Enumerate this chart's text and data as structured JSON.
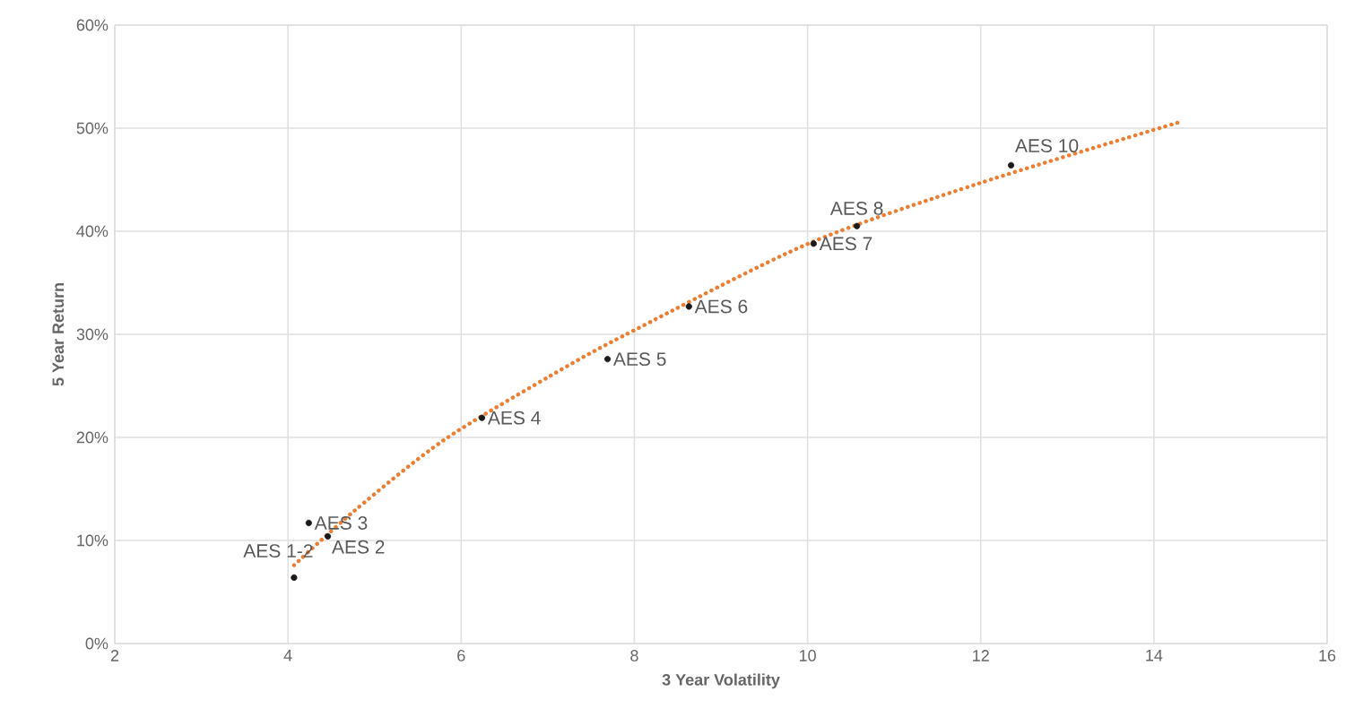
{
  "chart_data": {
    "type": "scatter",
    "xlabel": "3 Year Volatility",
    "ylabel": "5 Year Return",
    "xlim": [
      2,
      16
    ],
    "xticks": [
      2,
      4,
      6,
      8,
      10,
      12,
      14,
      16
    ],
    "ylim": [
      0,
      60
    ],
    "yticks": [
      {
        "value": 0,
        "label": "0%"
      },
      {
        "value": 10,
        "label": "10%"
      },
      {
        "value": 20,
        "label": "20%"
      },
      {
        "value": 30,
        "label": "30%"
      },
      {
        "value": 40,
        "label": "40%"
      },
      {
        "value": 50,
        "label": "50%"
      },
      {
        "value": 60,
        "label": "60%"
      }
    ],
    "grid": true,
    "series": [
      {
        "color": "#1a1a1a",
        "marker": "circle",
        "x": [
          4.07,
          4.24,
          4.46,
          6.24,
          7.69,
          8.63,
          10.07,
          10.57,
          12.35
        ],
        "values": [
          6.4,
          11.7,
          10.4,
          21.9,
          27.6,
          32.7,
          38.8,
          40.5,
          46.4
        ]
      },
      {
        "type": "line",
        "color": "#ed7d31",
        "line_style": "dotted",
        "x": [
          4.07,
          4.77,
          5.81,
          7.16,
          8.0,
          10.01,
          12.0,
          14.3
        ],
        "values": [
          7.6,
          12.9,
          19.8,
          26.6,
          30.4,
          38.8,
          44.7,
          50.6
        ]
      }
    ],
    "annotations": [
      {
        "text": "AES 1-2",
        "x": 4.07,
        "y": 6.4
      },
      {
        "text": "AES 3",
        "x": 4.24,
        "y": 11.7
      },
      {
        "text": "AES 2",
        "x": 4.46,
        "y": 10.4
      },
      {
        "text": "AES 4",
        "x": 6.24,
        "y": 21.9
      },
      {
        "text": "AES 5",
        "x": 7.69,
        "y": 27.6
      },
      {
        "text": "AES 6",
        "x": 8.63,
        "y": 32.7
      },
      {
        "text": "AES 7",
        "x": 10.07,
        "y": 38.8
      },
      {
        "text": "AES 8",
        "x": 10.57,
        "y": 40.5
      },
      {
        "text": "AES 10",
        "x": 12.35,
        "y": 46.4
      }
    ]
  }
}
